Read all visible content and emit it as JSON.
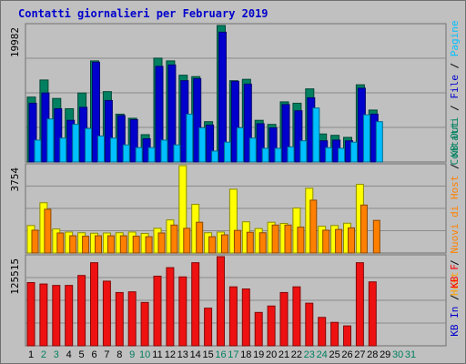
{
  "chart_data": {
    "type": "bar",
    "title": "Contatti giornalieri per February 2019",
    "categories": [
      "1",
      "2",
      "3",
      "4",
      "5",
      "6",
      "7",
      "8",
      "9",
      "10",
      "11",
      "12",
      "13",
      "14",
      "15",
      "16",
      "17",
      "18",
      "19",
      "20",
      "21",
      "22",
      "23",
      "24",
      "25",
      "26",
      "27",
      "28",
      "29",
      "30",
      "31"
    ],
    "weekend_days": [
      "2",
      "3",
      "9",
      "10",
      "16",
      "17",
      "23",
      "24",
      "30",
      "31"
    ],
    "grid": true,
    "panels": [
      {
        "id": "contatti",
        "ymax_label": "19982",
        "ymax": 19982,
        "side_labels": [
          {
            "text": "Contatti",
            "color": "#008060"
          },
          {
            "text": " / ",
            "color": "#000000"
          },
          {
            "text": "File",
            "color": "#0000cc"
          },
          {
            "text": " / ",
            "color": "#000000"
          },
          {
            "text": "Pagine",
            "color": "#00c0ff"
          }
        ],
        "series": [
          {
            "name": "Contatti",
            "color": "#008060",
            "values": [
              9500,
              12000,
              9300,
              7800,
              10100,
              14800,
              10300,
              7000,
              6400,
              4000,
              15200,
              14800,
              12700,
              12500,
              5900,
              19982,
              11900,
              12100,
              6100,
              5500,
              8800,
              8600,
              10700,
              4100,
              3900,
              3600,
              11300,
              7600,
              0,
              0,
              0
            ]
          },
          {
            "name": "File",
            "color": "#0000cc",
            "values": [
              8600,
              10100,
              7800,
              6100,
              8000,
              14600,
              9000,
              6800,
              6200,
              3400,
              14000,
              14200,
              11900,
              12200,
              5400,
              19000,
              11800,
              11400,
              5600,
              5000,
              8400,
              7500,
              9400,
              3100,
              3200,
              3100,
              10800,
              7000,
              0,
              0,
              0
            ]
          },
          {
            "name": "Pagine",
            "color": "#00c0ff",
            "values": [
              3200,
              6300,
              3500,
              5500,
              4900,
              3800,
              3500,
              2500,
              2100,
              2100,
              3200,
              2500,
              7000,
              5000,
              1600,
              2900,
              5000,
              3500,
              2000,
              2000,
              2200,
              3100,
              7900,
              2100,
              2000,
              2900,
              6900,
              5900,
              0,
              0,
              0
            ]
          }
        ]
      },
      {
        "id": "host",
        "ymax_label": "3754",
        "ymax": 3754,
        "side_labels": [
          {
            "text": "Host",
            "color": "#ffa000"
          },
          {
            "text": " / ",
            "color": "#000000"
          },
          {
            "text": "Nuovi di Host",
            "color": "#ff8000"
          },
          {
            "text": " / ",
            "color": "#000000"
          },
          {
            "text": "KB Out",
            "color": "#008060"
          }
        ],
        "series": [
          {
            "name": "Host",
            "color": "#ffff00",
            "values": [
              1180,
              2160,
              1030,
              900,
              870,
              850,
              860,
              870,
              900,
              840,
              1060,
              1420,
              3754,
              2090,
              870,
              900,
              2740,
              1340,
              1050,
              1320,
              1270,
              1930,
              2780,
              1150,
              1180,
              1280,
              2950,
              0,
              0,
              0,
              0
            ]
          },
          {
            "name": "Nuovi di Host",
            "color": "#ff8000",
            "values": [
              980,
              1880,
              860,
              740,
              720,
              740,
              740,
              740,
              720,
              700,
              860,
              1200,
              1060,
              1320,
              700,
              780,
              970,
              890,
              870,
              1200,
              1200,
              1110,
              2270,
              980,
              1010,
              1080,
              2060,
              1400,
              0,
              0,
              0
            ]
          }
        ]
      },
      {
        "id": "kb",
        "ymax_label": "125515",
        "ymax": 125515,
        "side_labels": [
          {
            "text": "KB In",
            "color": "#0000cc"
          },
          {
            "text": " / ",
            "color": "#000000"
          },
          {
            "text": "KB F",
            "color": "#ff0000"
          }
        ],
        "series": [
          {
            "name": "KB F",
            "color": "#ee1111",
            "values": [
              89000,
              87000,
              85000,
              85000,
              99000,
              117000,
              91000,
              75000,
              76000,
              61000,
              98000,
              110000,
              97000,
              117000,
              53000,
              125515,
              83000,
              80000,
              47000,
              56000,
              75000,
              83000,
              60000,
              40000,
              33000,
              28000,
              117000,
              90000,
              0,
              0,
              0
            ]
          }
        ]
      }
    ]
  }
}
